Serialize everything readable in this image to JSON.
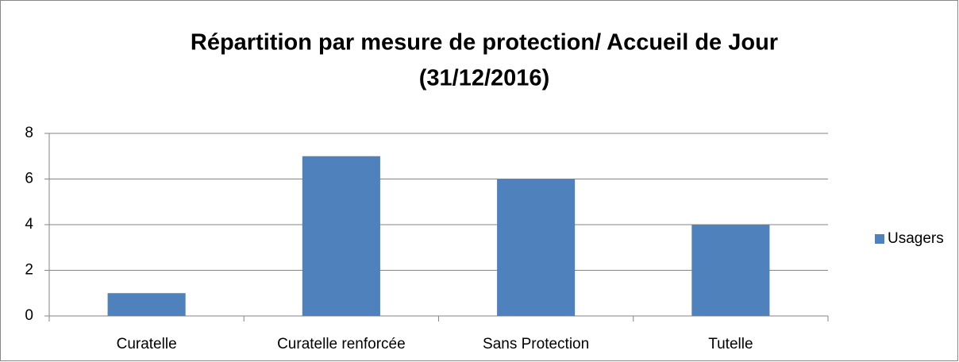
{
  "chart_data": {
    "type": "bar",
    "title": [
      "Répartition par mesure de protection/ Accueil de Jour",
      "(31/12/2016)"
    ],
    "categories": [
      "Curatelle",
      "Curatelle renforcée",
      "Sans Protection",
      "Tutelle"
    ],
    "series": [
      {
        "name": "Usagers",
        "color": "#4f81bd",
        "values": [
          1,
          7,
          6,
          4
        ]
      }
    ],
    "ylim": [
      0,
      8
    ],
    "yticks": [
      0,
      2,
      4,
      6,
      8
    ],
    "grid": true,
    "legend": "right"
  }
}
